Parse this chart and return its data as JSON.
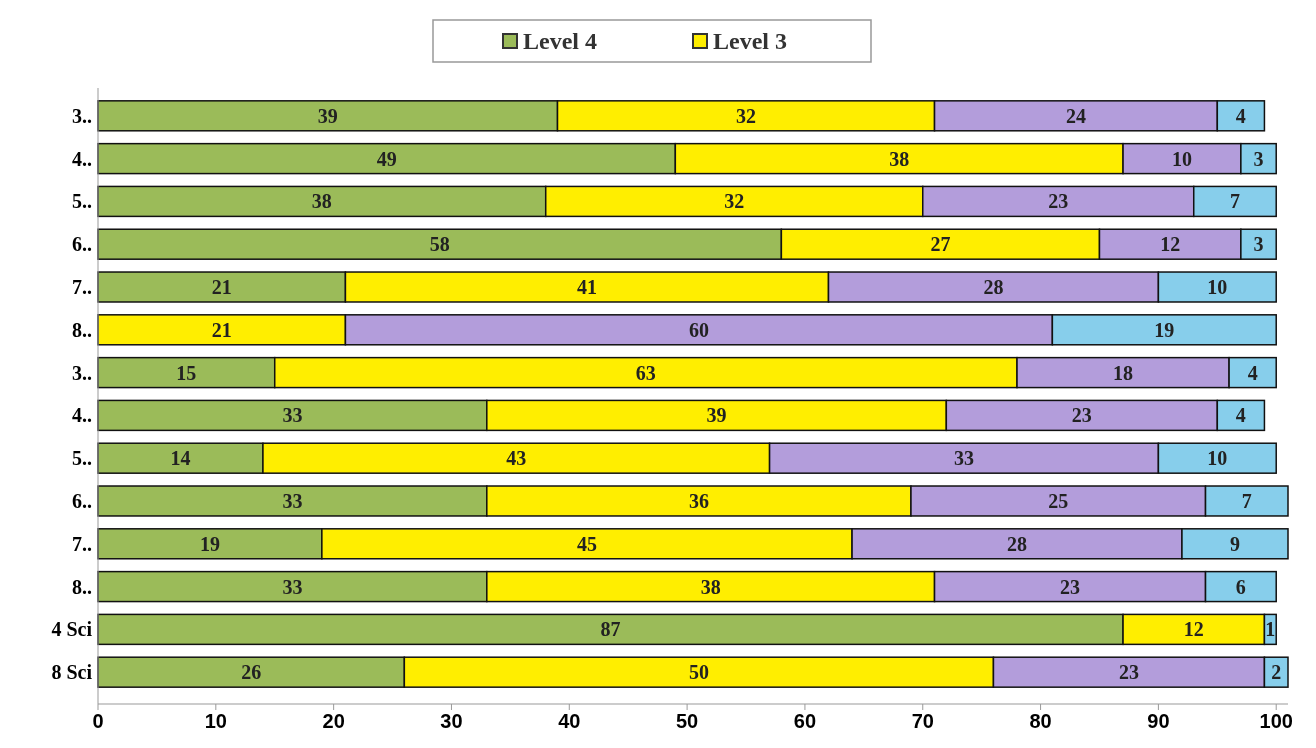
{
  "chart_data": {
    "type": "bar",
    "orientation": "horizontal",
    "stacked": true,
    "data_labels": true,
    "legend": "top",
    "categories": [
      "3..",
      "4..",
      "5..",
      "6..",
      "7..",
      "8..",
      "3..",
      "4..",
      "5..",
      "6..",
      "7..",
      "8..",
      "4 Sci",
      "8 Sci"
    ],
    "series": [
      {
        "name": "Level 4",
        "color": "#9bbb59",
        "values": [
          39,
          49,
          38,
          58,
          21,
          null,
          15,
          33,
          14,
          33,
          19,
          33,
          87,
          26
        ]
      },
      {
        "name": "Level 3",
        "color": "#ffee00",
        "values": [
          32,
          38,
          32,
          27,
          41,
          21,
          63,
          39,
          43,
          36,
          45,
          38,
          12,
          50
        ]
      },
      {
        "color": "#b39ddb",
        "values": [
          24,
          10,
          23,
          12,
          28,
          60,
          18,
          23,
          33,
          25,
          28,
          23,
          null,
          23
        ]
      },
      {
        "color": "#87ceeb",
        "values": [
          4,
          3,
          7,
          3,
          10,
          19,
          4,
          4,
          10,
          7,
          9,
          6,
          1,
          2
        ]
      }
    ],
    "xlim": [
      0,
      101
    ],
    "xticks": [
      0,
      10,
      20,
      30,
      40,
      50,
      60,
      70,
      80,
      90,
      100
    ]
  }
}
